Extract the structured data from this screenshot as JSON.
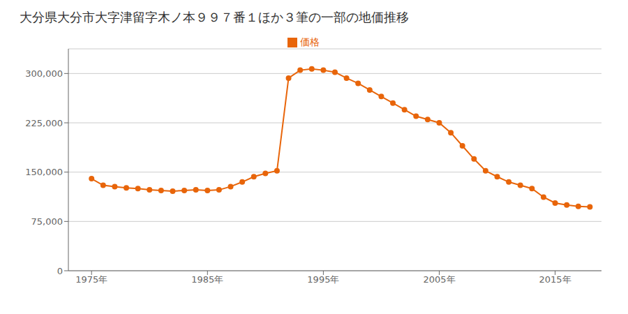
{
  "chart_data": {
    "type": "line",
    "title": "大分県大分市大字津留字木ノ本９９７番１ほか３筆の一部の地価推移",
    "x": [
      1975,
      1976,
      1977,
      1978,
      1979,
      1980,
      1981,
      1982,
      1983,
      1984,
      1985,
      1986,
      1987,
      1988,
      1989,
      1990,
      1991,
      1992,
      1993,
      1994,
      1995,
      1996,
      1997,
      1998,
      1999,
      2000,
      2001,
      2002,
      2003,
      2004,
      2005,
      2006,
      2007,
      2008,
      2009,
      2010,
      2011,
      2012,
      2013,
      2014,
      2015,
      2016,
      2017,
      2018
    ],
    "series": [
      {
        "name": "価格",
        "color": "#e8650a",
        "marker": "circle",
        "values": [
          140000,
          130000,
          128000,
          126000,
          125000,
          123000,
          122000,
          121000,
          122000,
          123000,
          122000,
          123000,
          128000,
          135000,
          143000,
          148000,
          152000,
          293000,
          305000,
          307000,
          305000,
          302000,
          293000,
          285000,
          275000,
          265000,
          255000,
          245000,
          235000,
          230000,
          225000,
          210000,
          190000,
          170000,
          152000,
          143000,
          135000,
          130000,
          125000,
          112000,
          103000,
          100000,
          98000,
          97000
        ]
      }
    ],
    "xlim": [
      1973,
      2019
    ],
    "xticks": [
      {
        "value": 1975,
        "label": "1975年"
      },
      {
        "value": 1985,
        "label": "1985年"
      },
      {
        "value": 1995,
        "label": "1995年"
      },
      {
        "value": 2005,
        "label": "2005年"
      },
      {
        "value": 2015,
        "label": "2015年"
      }
    ],
    "ylim": [
      0,
      337500
    ],
    "yticks": [
      0,
      {
        "value": 75000,
        "label": "75,000"
      },
      {
        "value": 150000,
        "label": "150,000"
      },
      {
        "value": 225000,
        "label": "225,000"
      },
      {
        "value": 300000,
        "label": "300,000"
      }
    ],
    "grid": "y",
    "legend": "top"
  }
}
